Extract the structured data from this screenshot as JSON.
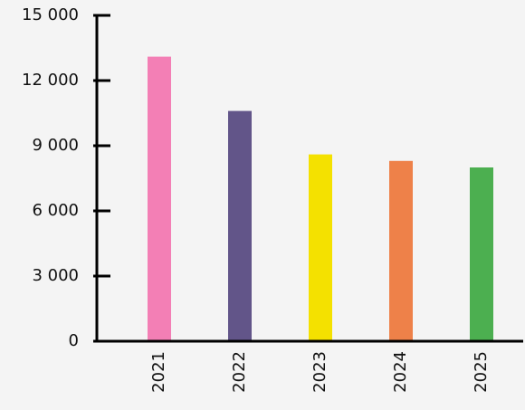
{
  "chart_data": {
    "type": "bar",
    "categories": [
      "2021",
      "2022",
      "2023",
      "2024",
      "2025"
    ],
    "values": [
      13100,
      10600,
      8600,
      8300,
      8000
    ],
    "colors": [
      "#f37fb5",
      "#625589",
      "#f4e100",
      "#ee8149",
      "#4caf50"
    ],
    "ylim": [
      0,
      15000
    ],
    "yticks": [
      0,
      {
        "value": 3000,
        "label": "3 000"
      },
      {
        "value": 6000,
        "label": "6 000"
      },
      {
        "value": 9000,
        "label": "9 000"
      },
      {
        "value": 12000,
        "label": "12 000"
      },
      {
        "value": 15000,
        "label": "15 000"
      }
    ],
    "grid": false
  }
}
